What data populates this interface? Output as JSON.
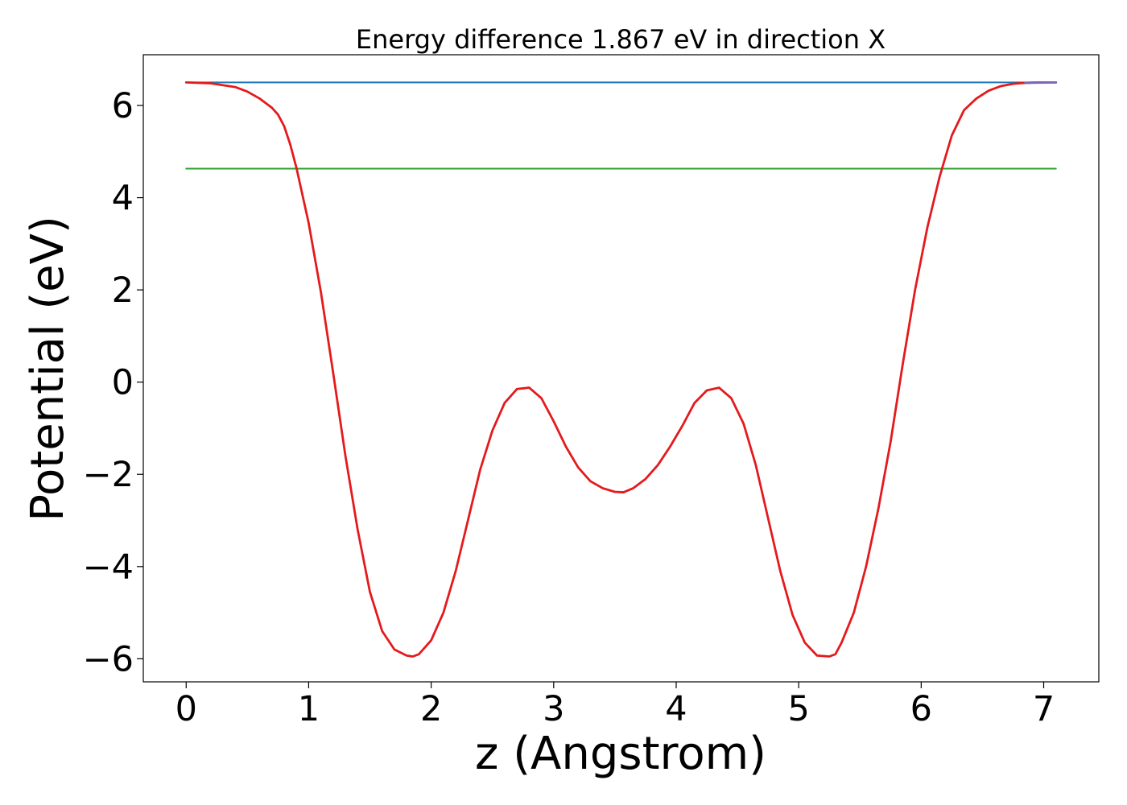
{
  "chart_data": {
    "type": "line",
    "title": "Energy difference 1.867 eV in direction X",
    "xlabel": "z (Angstrom)",
    "ylabel": "Potential (eV)",
    "xlim": [
      -0.35,
      7.45
    ],
    "ylim": [
      -6.5,
      7.1
    ],
    "xticks": [
      0,
      1,
      2,
      3,
      4,
      5,
      6,
      7
    ],
    "xtick_labels": [
      "0",
      "1",
      "2",
      "3",
      "4",
      "5",
      "6",
      "7"
    ],
    "yticks": [
      -6,
      -4,
      -2,
      0,
      2,
      4,
      6
    ],
    "ytick_labels": [
      "−6",
      "−4",
      "−2",
      "0",
      "2",
      "4",
      "6"
    ],
    "grid": false,
    "legend": "none",
    "series": [
      {
        "type": "hline",
        "color": "#1f77b4",
        "x": [
          0,
          7.1
        ],
        "values": [
          6.5,
          6.5
        ]
      },
      {
        "type": "hline",
        "color": "#2ca02c",
        "x": [
          0,
          7.1
        ],
        "values": [
          4.63,
          4.63
        ]
      },
      {
        "type": "curve",
        "color": "#e41a1c",
        "x": [
          0,
          0.2,
          0.4,
          0.5,
          0.6,
          0.7,
          0.75,
          0.8,
          0.85,
          0.9,
          1.0,
          1.1,
          1.2,
          1.3,
          1.4,
          1.5,
          1.6,
          1.7,
          1.8,
          1.85,
          1.9,
          2.0,
          2.1,
          2.2,
          2.3,
          2.4,
          2.5,
          2.6,
          2.7,
          2.8,
          2.9,
          3.0,
          3.1,
          3.2,
          3.3,
          3.4,
          3.5,
          3.57,
          3.65,
          3.75,
          3.85,
          3.95,
          4.05,
          4.15,
          4.25,
          4.35,
          4.45,
          4.55,
          4.65,
          4.75,
          4.85,
          4.95,
          5.05,
          5.15,
          5.25,
          5.3,
          5.35,
          5.45,
          5.55,
          5.65,
          5.75,
          5.85,
          5.95,
          6.05,
          6.15,
          6.25,
          6.35,
          6.45,
          6.55,
          6.65,
          6.75,
          6.85,
          6.95,
          7.1
        ],
        "values": [
          6.5,
          6.48,
          6.4,
          6.3,
          6.15,
          5.95,
          5.8,
          5.55,
          5.15,
          4.65,
          3.45,
          1.95,
          0.2,
          -1.6,
          -3.2,
          -4.55,
          -5.4,
          -5.8,
          -5.93,
          -5.95,
          -5.9,
          -5.6,
          -5.0,
          -4.1,
          -3.0,
          -1.9,
          -1.05,
          -0.45,
          -0.15,
          -0.12,
          -0.35,
          -0.85,
          -1.4,
          -1.85,
          -2.15,
          -2.3,
          -2.38,
          -2.39,
          -2.3,
          -2.1,
          -1.8,
          -1.4,
          -0.95,
          -0.45,
          -0.18,
          -0.12,
          -0.35,
          -0.9,
          -1.8,
          -2.95,
          -4.1,
          -5.05,
          -5.65,
          -5.93,
          -5.95,
          -5.9,
          -5.65,
          -5.0,
          -4.0,
          -2.75,
          -1.3,
          0.4,
          2.0,
          3.35,
          4.45,
          5.35,
          5.9,
          6.15,
          6.32,
          6.42,
          6.47,
          6.49,
          6.5,
          6.5
        ]
      },
      {
        "type": "overlay",
        "color": "#7b68b8",
        "x": [
          6.85,
          7.1
        ],
        "values": [
          6.49,
          6.5
        ]
      }
    ]
  }
}
